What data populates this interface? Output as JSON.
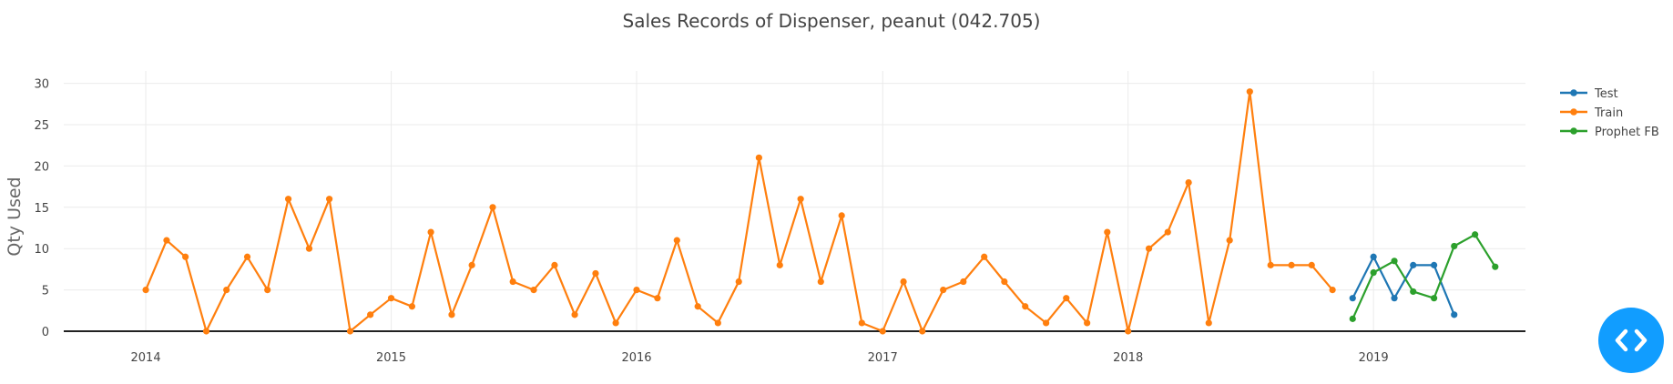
{
  "chart_data": {
    "type": "line",
    "title": "Sales Records of Dispenser, peanut  (042.705)",
    "ylabel": "Qty  Used",
    "ylim": [
      0,
      31.5
    ],
    "xlim": [
      "2013-09-01",
      "2019-08-15"
    ],
    "yticks": [
      0,
      5,
      10,
      15,
      20,
      25,
      30
    ],
    "xticks": [
      {
        "label": "2014",
        "date": "2014-01-01"
      },
      {
        "label": "2015",
        "date": "2015-01-01"
      },
      {
        "label": "2016",
        "date": "2016-01-01"
      },
      {
        "label": "2017",
        "date": "2017-01-01"
      },
      {
        "label": "2018",
        "date": "2018-01-01"
      },
      {
        "label": "2019",
        "date": "2019-01-01"
      }
    ],
    "grid": true,
    "legend_position": "top-right",
    "series": [
      {
        "name": "Test",
        "color": "#1f77b4",
        "x": [
          "2018-12-01",
          "2019-01-01",
          "2019-02-01",
          "2019-03-01",
          "2019-04-01",
          "2019-05-01"
        ],
        "y": [
          4,
          9,
          4,
          8,
          8,
          2
        ]
      },
      {
        "name": "Train",
        "color": "#ff7f0e",
        "x": [
          "2014-01-01",
          "2014-02-01",
          "2014-03-01",
          "2014-04-01",
          "2014-05-01",
          "2014-06-01",
          "2014-07-01",
          "2014-08-01",
          "2014-09-01",
          "2014-10-01",
          "2014-11-01",
          "2014-12-01",
          "2015-01-01",
          "2015-02-01",
          "2015-03-01",
          "2015-04-01",
          "2015-05-01",
          "2015-06-01",
          "2015-07-01",
          "2015-08-01",
          "2015-09-01",
          "2015-10-01",
          "2015-11-01",
          "2015-12-01",
          "2016-01-01",
          "2016-02-01",
          "2016-03-01",
          "2016-04-01",
          "2016-05-01",
          "2016-06-01",
          "2016-07-01",
          "2016-08-01",
          "2016-09-01",
          "2016-10-01",
          "2016-11-01",
          "2016-12-01",
          "2017-01-01",
          "2017-02-01",
          "2017-03-01",
          "2017-04-01",
          "2017-05-01",
          "2017-06-01",
          "2017-07-01",
          "2017-08-01",
          "2017-09-01",
          "2017-10-01",
          "2017-11-01",
          "2017-12-01",
          "2018-01-01",
          "2018-02-01",
          "2018-03-01",
          "2018-04-01",
          "2018-05-01",
          "2018-06-01",
          "2018-07-01",
          "2018-08-01",
          "2018-09-01",
          "2018-10-01",
          "2018-11-01"
        ],
        "y": [
          5,
          11,
          9,
          0,
          5,
          9,
          5,
          16,
          10,
          16,
          0,
          2,
          4,
          3,
          12,
          2,
          8,
          15,
          6,
          5,
          8,
          2,
          7,
          1,
          5,
          4,
          11,
          3,
          1,
          6,
          21,
          8,
          16,
          6,
          14,
          1,
          0,
          6,
          0,
          5,
          6,
          9,
          6,
          3,
          1,
          4,
          1,
          12,
          0,
          10,
          12,
          18,
          1,
          11,
          29,
          8,
          8,
          8,
          5
        ]
      },
      {
        "name": "Prophet FB",
        "color": "#2ca02c",
        "x": [
          "2018-12-01",
          "2019-01-01",
          "2019-02-01",
          "2019-03-01",
          "2019-04-01",
          "2019-05-01",
          "2019-06-01",
          "2019-07-01"
        ],
        "y": [
          1.5,
          7.1,
          8.5,
          4.8,
          4.0,
          10.3,
          11.7,
          7.8
        ]
      }
    ]
  },
  "toggle_button": {
    "icon": "code-icon",
    "color": "#119dff"
  }
}
